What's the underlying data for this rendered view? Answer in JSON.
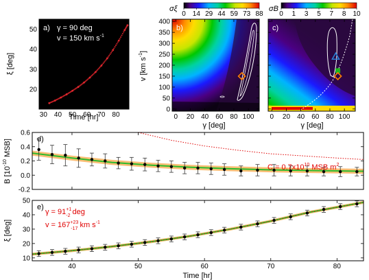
{
  "colors": {
    "observation_red": "#e0262c",
    "fit_green": "#2dbb2d",
    "band_orange": "#f6a23a",
    "contour_white": "#ffffff",
    "marker_orange": "#ff7f00",
    "marker_blue": "#2a7fd4",
    "marker_green": "#1fb81f",
    "annotation_red": "#e00000"
  },
  "panel_a": {
    "label": "a)",
    "gamma_text": "γ =  90 deg",
    "v_text": "v = 150 km s",
    "v_sup": "-1",
    "xlabel": "Time [hr]",
    "ylabel": "ξ [deg]",
    "xticks": [
      "30",
      "40",
      "50",
      "60",
      "70",
      "80"
    ],
    "yticks": [
      "20",
      "30",
      "40",
      "50"
    ]
  },
  "panel_b": {
    "label": "b)",
    "colorbar_symbol": "σξ",
    "colorbar_ticks": [
      "0",
      "14",
      "29",
      "44",
      "59",
      "73",
      "88"
    ],
    "ylabel": "v [km s",
    "ylabel_sup": "-1",
    "ylabel_end": "]",
    "xlabel": "γ [deg]",
    "xticks": [
      "0",
      "20",
      "40",
      "60",
      "80",
      "100"
    ],
    "yticks": [
      "0",
      "50",
      "100",
      "150",
      "200",
      "250",
      "300",
      "350",
      "400"
    ]
  },
  "panel_c": {
    "label": "c)",
    "colorbar_symbol": "σB",
    "colorbar_ticks": [
      "0",
      "1",
      "3",
      "5",
      "7",
      "8",
      "10"
    ],
    "xlabel": "γ [deg]",
    "xticks": [
      "0",
      "20",
      "40",
      "60",
      "80",
      "100"
    ]
  },
  "panel_d": {
    "label": "d)",
    "ylabel": "B [10",
    "ylabel_sup": "-10",
    "ylabel_end": " MSB]",
    "c_text": "C = 0.7x10",
    "c_sup1": "10",
    "c_mid": " MSB m",
    "c_sup2": "2",
    "yticks": [
      "0.6",
      "0.4",
      "0.2",
      "0.0",
      "-0.2"
    ]
  },
  "panel_e": {
    "label": "e)",
    "gamma_text": "γ = 91",
    "gamma_sup": "+1",
    "gamma_sub": "-2",
    "gamma_unit": " deg",
    "v_text": "v = 167",
    "v_sup": "+23",
    "v_sub": "-17",
    "v_unit": " km s",
    "v_unit_sup": "-1",
    "ylabel": "ξ [deg]",
    "yticks": [
      "50",
      "40",
      "30",
      "20",
      "10"
    ],
    "xlabel": "Time [hr]",
    "xticks": [
      "40",
      "50",
      "60",
      "70",
      "80"
    ]
  },
  "chart_data": [
    {
      "type": "scatter",
      "panel": "a",
      "xlabel": "Time [hr]",
      "ylabel": "ξ [deg]",
      "xlim": [
        27,
        89
      ],
      "ylim": [
        10,
        55
      ],
      "x": [
        34,
        38,
        42,
        46,
        50,
        54,
        58,
        62,
        66,
        70,
        74,
        78,
        82,
        86,
        88
      ],
      "y": [
        13.0,
        14.3,
        15.8,
        17.4,
        19.2,
        21.1,
        23.3,
        25.8,
        28.6,
        31.8,
        35.4,
        39.6,
        44.3,
        49.5,
        52.0
      ]
    },
    {
      "type": "heatmap",
      "panel": "b",
      "colorbar": {
        "symbol": "σξ",
        "ticks": [
          0,
          14,
          29,
          44,
          59,
          73,
          88
        ]
      },
      "xlabel": "γ [deg]",
      "ylabel": "v [km s-1]",
      "xlim": [
        -5,
        115
      ],
      "ylim": [
        -10,
        410
      ],
      "best_fit_marker": {
        "gamma": 91,
        "v": 150
      }
    },
    {
      "type": "heatmap",
      "panel": "c",
      "colorbar": {
        "symbol": "σB",
        "ticks": [
          0,
          1,
          3,
          5,
          7,
          8,
          10
        ]
      },
      "xlabel": "γ [deg]",
      "xlim": [
        -5,
        115
      ],
      "ylim": [
        -10,
        410
      ],
      "markers": [
        {
          "shape": "triangle",
          "gamma": 88,
          "v": 240
        },
        {
          "shape": "square",
          "gamma": 91,
          "v": 175
        },
        {
          "shape": "diamond",
          "gamma": 91,
          "v": 150
        }
      ]
    },
    {
      "type": "scatter",
      "panel": "d",
      "ylabel": "B [10-10 MSB]",
      "xlim": [
        34,
        84
      ],
      "ylim": [
        -0.2,
        0.6
      ],
      "x": [
        35.0,
        37.0,
        39.0,
        41.0,
        43.0,
        45.0,
        47.0,
        49.0,
        51.0,
        53.0,
        55.0,
        57.0,
        59.0,
        61.0,
        63.0,
        65.5,
        68.0,
        70.5,
        73.0,
        75.5,
        78.0,
        80.5,
        83.0
      ],
      "y": [
        0.36,
        0.29,
        0.28,
        0.24,
        0.22,
        0.2,
        0.17,
        0.16,
        0.15,
        0.13,
        0.12,
        0.1,
        0.1,
        0.09,
        0.08,
        0.06,
        0.07,
        0.07,
        0.06,
        0.06,
        0.05,
        0.05,
        0.05
      ],
      "yerr": [
        0.15,
        0.13,
        0.15,
        0.13,
        0.09,
        0.1,
        0.08,
        0.09,
        0.09,
        0.08,
        0.08,
        0.08,
        0.08,
        0.08,
        0.08,
        0.07,
        0.08,
        0.08,
        0.07,
        0.07,
        0.06,
        0.07,
        0.06
      ],
      "fit": {
        "x": [
          34,
          40,
          46,
          52,
          58,
          64,
          70,
          76,
          84
        ],
        "y": [
          0.31,
          0.24,
          0.18,
          0.14,
          0.11,
          0.09,
          0.075,
          0.065,
          0.055
        ]
      },
      "model_C": {
        "x": [
          50,
          55,
          60,
          65,
          70,
          75,
          80,
          84
        ],
        "y": [
          0.6,
          0.49,
          0.41,
          0.35,
          0.3,
          0.27,
          0.24,
          0.22
        ]
      }
    },
    {
      "type": "scatter",
      "panel": "e",
      "ylabel": "ξ [deg]",
      "xlabel": "Time [hr]",
      "xlim": [
        34,
        84
      ],
      "ylim": [
        8,
        50
      ],
      "x": [
        35.0,
        37.0,
        39.0,
        41.0,
        43.0,
        45.0,
        47.0,
        49.0,
        51.0,
        53.0,
        55.0,
        57.0,
        59.0,
        61.0,
        63.0,
        65.5,
        68.0,
        70.5,
        73.0,
        75.5,
        78.0,
        80.5,
        83.0
      ],
      "y": [
        13.0,
        13.8,
        14.6,
        15.5,
        16.4,
        17.4,
        18.4,
        19.5,
        20.7,
        21.9,
        23.2,
        24.6,
        26.1,
        27.6,
        29.3,
        31.4,
        33.7,
        36.1,
        38.6,
        41.2,
        43.7,
        45.7,
        47.6
      ],
      "yerr": [
        2.0,
        2.0,
        2.0,
        2.0,
        2.0,
        2.0,
        2.0,
        2.0,
        2.0,
        2.0,
        2.0,
        2.0,
        2.0,
        2.0,
        2.0,
        2.0,
        2.0,
        2.0,
        2.0,
        2.0,
        2.0,
        2.0,
        2.0
      ],
      "fit": {
        "x": [
          34,
          40,
          46,
          52,
          58,
          64,
          70,
          76,
          84
        ],
        "y": [
          12.6,
          15.0,
          17.9,
          21.3,
          25.3,
          30.1,
          35.6,
          41.9,
          48.6
        ]
      }
    }
  ]
}
